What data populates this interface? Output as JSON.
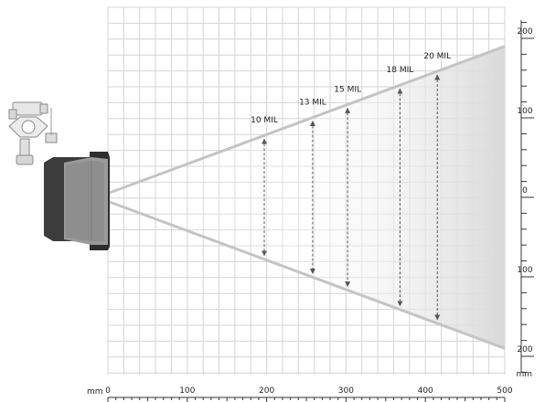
{
  "diagram": {
    "x_axis": {
      "unit": "mm",
      "min": 0,
      "max": 500,
      "major": [
        0,
        100,
        200,
        300,
        400,
        500
      ],
      "minor_step": 10
    },
    "y_axis": {
      "unit": "mm",
      "labels": [
        "200",
        "100",
        "0",
        "100",
        "200"
      ],
      "values": [
        200,
        100,
        0,
        -100,
        -200
      ],
      "minor_step": 20
    },
    "field": {
      "apex_width_mm": 10,
      "end_half_width_mm": 190,
      "end_distance_mm": 500,
      "line_color": "#c4c4c4",
      "fill_start_color": "#ffffff",
      "fill_end_color": "#d9d9d9"
    },
    "resolutions": [
      {
        "label": "10 MIL",
        "distance_mm": 197
      },
      {
        "label": "13 MIL",
        "distance_mm": 258
      },
      {
        "label": "15 MIL",
        "distance_mm": 302
      },
      {
        "label": "18 MIL",
        "distance_mm": 368
      },
      {
        "label": "20 MIL",
        "distance_mm": 415
      }
    ],
    "colors": {
      "grid": "#d4d4d4",
      "axis": "#333333",
      "arrow": "#555555"
    },
    "icons": {
      "scanner": "scanner-icon",
      "bracket": "mounting-bracket-icon"
    }
  }
}
